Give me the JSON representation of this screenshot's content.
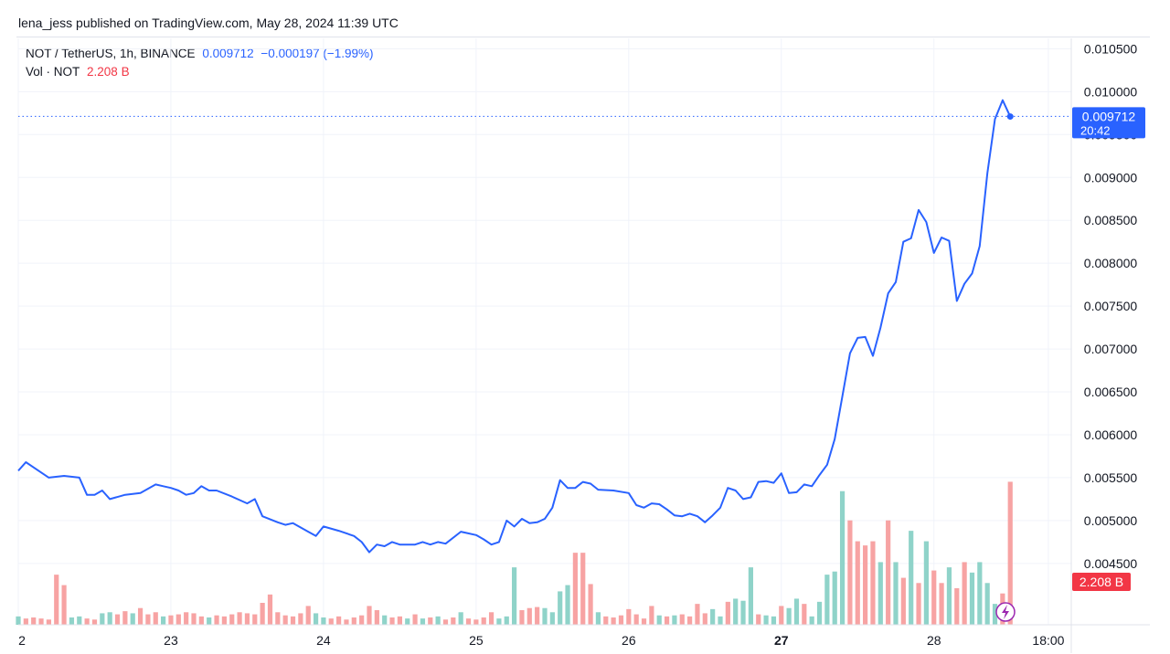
{
  "publisher_line": "lena_jess published on TradingView.com, May 28, 2024 11:39 UTC",
  "legend": {
    "symbol": "NOT / TetherUS, 1h, BINANCE",
    "last_price": "0.009712",
    "change": "−0.000197 (−1.99%)",
    "volume_label": "Vol · NOT",
    "volume_value": "2.208 B"
  },
  "price_tag": {
    "price": "0.009712",
    "countdown": "20:42"
  },
  "volume_tag": "2.208 B",
  "colors": {
    "line": "#2962ff",
    "volume_up": "#8fd3c9",
    "volume_down": "#f7a3a3",
    "tag_blue": "#2962ff",
    "tag_red": "#f23645",
    "lightning": "#9c27b0"
  },
  "chart_data": {
    "type": "line",
    "title": "NOT / TetherUS, 1h, BINANCE",
    "x_ticks": [
      {
        "label": "2",
        "day": 22
      },
      {
        "label": "23",
        "day": 23
      },
      {
        "label": "24",
        "day": 24
      },
      {
        "label": "25",
        "day": 25
      },
      {
        "label": "26",
        "day": 26
      },
      {
        "label": "27",
        "day": 27
      },
      {
        "label": "28",
        "day": 28
      },
      {
        "label": "18:00",
        "day": 28.75
      }
    ],
    "y_ticks": [
      "0.010500",
      "0.010000",
      "0.009500",
      "0.009000",
      "0.008500",
      "0.008000",
      "0.007500",
      "0.007000",
      "0.006500",
      "0.006000",
      "0.005500",
      "0.005000",
      "0.004500"
    ],
    "ylim": [
      0.0042,
      0.0106
    ],
    "xlim": [
      22,
      28.9
    ],
    "grid": true,
    "price_series": {
      "name": "NOT / TetherUS",
      "x": [
        22.0,
        22.05,
        22.2,
        22.3,
        22.4,
        22.45,
        22.5,
        22.55,
        22.6,
        22.7,
        22.8,
        22.9,
        22.95,
        23.0,
        23.05,
        23.1,
        23.15,
        23.2,
        23.25,
        23.3,
        23.4,
        23.5,
        23.55,
        23.6,
        23.7,
        23.75,
        23.8,
        23.9,
        23.95,
        24.0,
        24.1,
        24.2,
        24.25,
        24.3,
        24.35,
        24.4,
        24.45,
        24.5,
        24.6,
        24.65,
        24.7,
        24.75,
        24.8,
        24.9,
        25.0,
        25.05,
        25.1,
        25.15,
        25.2,
        25.25,
        25.3,
        25.35,
        25.4,
        25.45,
        25.5,
        25.55,
        25.6,
        25.65,
        25.7,
        25.75,
        25.8,
        25.9,
        26.0,
        26.05,
        26.1,
        26.15,
        26.2,
        26.25,
        26.3,
        26.35,
        26.4,
        26.45,
        26.5,
        26.55,
        26.6,
        26.65,
        26.7,
        26.75,
        26.8,
        26.85,
        26.9,
        26.95,
        27.0,
        27.05,
        27.1,
        27.15,
        27.2,
        27.25,
        27.3,
        27.35,
        27.4,
        27.45,
        27.5,
        27.55,
        27.6,
        27.65,
        27.7,
        27.75,
        27.8,
        27.85,
        27.9,
        27.95,
        28.0,
        28.05,
        28.1,
        28.15,
        28.2,
        28.25,
        28.3,
        28.35,
        28.4,
        28.45,
        28.5
      ],
      "y": [
        0.00558,
        0.00568,
        0.0055,
        0.00552,
        0.0055,
        0.0053,
        0.0053,
        0.00535,
        0.00525,
        0.0053,
        0.00532,
        0.00542,
        0.0054,
        0.00538,
        0.00535,
        0.0053,
        0.00532,
        0.0054,
        0.00535,
        0.00535,
        0.00528,
        0.0052,
        0.00525,
        0.00505,
        0.00498,
        0.00495,
        0.00497,
        0.00487,
        0.00482,
        0.00493,
        0.00488,
        0.00482,
        0.00475,
        0.00463,
        0.00472,
        0.0047,
        0.00475,
        0.00472,
        0.00472,
        0.00475,
        0.00472,
        0.00475,
        0.00473,
        0.00487,
        0.00483,
        0.00478,
        0.00472,
        0.00475,
        0.005,
        0.00493,
        0.00502,
        0.00497,
        0.00498,
        0.00502,
        0.00515,
        0.00547,
        0.00538,
        0.00538,
        0.00545,
        0.00543,
        0.00536,
        0.00535,
        0.00532,
        0.00518,
        0.00515,
        0.0052,
        0.00519,
        0.00513,
        0.00506,
        0.00505,
        0.00508,
        0.00505,
        0.00498,
        0.00506,
        0.00515,
        0.00538,
        0.00535,
        0.00525,
        0.00527,
        0.00545,
        0.00546,
        0.00544,
        0.00555,
        0.00532,
        0.00533,
        0.00542,
        0.0054,
        0.00553,
        0.00565,
        0.00595,
        0.00645,
        0.00695,
        0.00713,
        0.00714,
        0.00692,
        0.00725,
        0.00765,
        0.00778,
        0.00825,
        0.00829,
        0.00862,
        0.00848,
        0.00812,
        0.0083,
        0.00826,
        0.00756,
        0.00776,
        0.00788,
        0.0082,
        0.00905,
        0.00968,
        0.0099,
        0.00971
      ]
    },
    "volume_series": {
      "name": "Vol · NOT",
      "x": [
        22.0,
        22.05,
        22.1,
        22.15,
        22.2,
        22.25,
        22.3,
        22.35,
        22.4,
        22.45,
        22.5,
        22.55,
        22.6,
        22.65,
        22.7,
        22.75,
        22.8,
        22.85,
        22.9,
        22.95,
        23.0,
        23.05,
        23.1,
        23.15,
        23.2,
        23.25,
        23.3,
        23.35,
        23.4,
        23.45,
        23.5,
        23.55,
        23.6,
        23.65,
        23.7,
        23.75,
        23.8,
        23.85,
        23.9,
        23.95,
        24.0,
        24.05,
        24.1,
        24.15,
        24.2,
        24.25,
        24.3,
        24.35,
        24.4,
        24.45,
        24.5,
        24.55,
        24.6,
        24.65,
        24.7,
        24.75,
        24.8,
        24.85,
        24.9,
        24.95,
        25.0,
        25.05,
        25.1,
        25.15,
        25.2,
        25.25,
        25.3,
        25.35,
        25.4,
        25.45,
        25.5,
        25.55,
        25.6,
        25.65,
        25.7,
        25.75,
        25.8,
        25.85,
        25.9,
        25.95,
        26.0,
        26.05,
        26.1,
        26.15,
        26.2,
        26.25,
        26.3,
        26.35,
        26.4,
        26.45,
        26.5,
        26.55,
        26.6,
        26.65,
        26.7,
        26.75,
        26.8,
        26.85,
        26.9,
        26.95,
        27.0,
        27.05,
        27.1,
        27.15,
        27.2,
        27.25,
        27.3,
        27.35,
        27.4,
        27.45,
        27.5,
        27.55,
        27.6,
        27.65,
        27.7,
        27.75,
        27.8,
        27.85,
        27.9,
        27.95,
        28.0,
        28.05,
        28.1,
        28.15,
        28.2,
        28.25,
        28.3,
        28.35,
        28.4,
        28.45,
        28.5
      ],
      "v": [
        8,
        6,
        7,
        6,
        5,
        48,
        38,
        7,
        8,
        6,
        5,
        11,
        12,
        10,
        13,
        11,
        16,
        10,
        12,
        8,
        9,
        10,
        12,
        11,
        8,
        7,
        9,
        8,
        10,
        12,
        11,
        10,
        21,
        29,
        12,
        9,
        8,
        11,
        18,
        11,
        7,
        6,
        8,
        5,
        7,
        9,
        18,
        14,
        9,
        7,
        8,
        6,
        10,
        6,
        7,
        8,
        5,
        7,
        12,
        6,
        5,
        7,
        12,
        6,
        8,
        55,
        14,
        16,
        17,
        16,
        12,
        32,
        38,
        69,
        69,
        39,
        12,
        8,
        7,
        9,
        15,
        10,
        6,
        18,
        9,
        8,
        9,
        10,
        8,
        20,
        11,
        15,
        8,
        22,
        25,
        23,
        55,
        10,
        9,
        8,
        18,
        16,
        25,
        20,
        8,
        22,
        48,
        51,
        128,
        100,
        80,
        76,
        80,
        60,
        100,
        60,
        45,
        90,
        40,
        80,
        52,
        40,
        55,
        35,
        60,
        50,
        60,
        40,
        20,
        30,
        137,
        120,
        98,
        20
      ],
      "up": [
        true,
        false,
        false,
        false,
        false,
        false,
        false,
        true,
        true,
        false,
        false,
        true,
        true,
        false,
        false,
        true,
        false,
        false,
        false,
        true,
        false,
        false,
        false,
        false,
        false,
        true,
        false,
        false,
        false,
        false,
        false,
        false,
        false,
        false,
        false,
        false,
        false,
        false,
        false,
        true,
        true,
        false,
        false,
        false,
        false,
        false,
        false,
        false,
        true,
        false,
        false,
        true,
        false,
        true,
        false,
        true,
        false,
        false,
        true,
        false,
        false,
        false,
        false,
        true,
        true,
        true,
        false,
        false,
        false,
        true,
        true,
        true,
        true,
        false,
        false,
        false,
        true,
        false,
        false,
        false,
        false,
        false,
        false,
        false,
        true,
        false,
        true,
        false,
        false,
        false,
        false,
        true,
        true,
        false,
        true,
        true,
        true,
        false,
        true,
        true,
        false,
        true,
        true,
        false,
        true,
        true,
        true,
        true,
        true,
        false,
        false,
        false,
        false,
        true,
        false,
        true,
        false,
        true,
        false,
        true,
        false,
        false,
        true,
        false,
        false,
        true,
        true,
        true,
        true,
        false
      ]
    }
  }
}
